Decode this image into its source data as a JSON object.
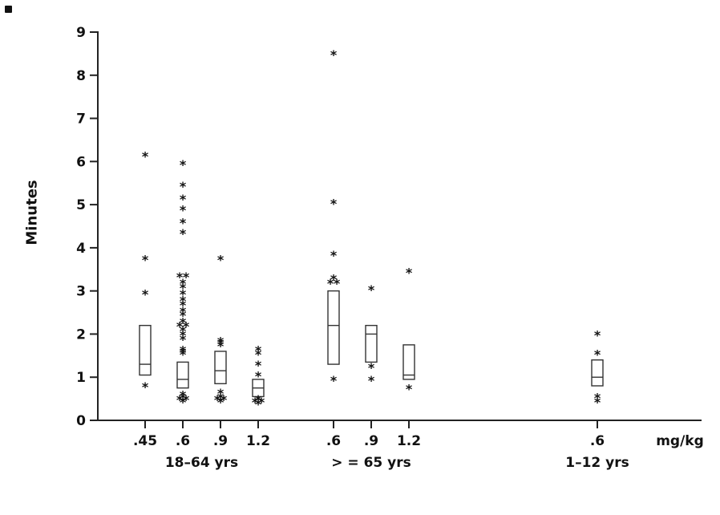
{
  "chart_data": {
    "type": "box",
    "title": "",
    "ylabel": "Minutes",
    "x_unit": "mg/kg",
    "ylim": [
      0,
      9
    ],
    "yticks": [
      0,
      1,
      2,
      3,
      4,
      5,
      6,
      7,
      8,
      9
    ],
    "grid": false,
    "x_slot_count": 13,
    "x_ticks": [
      {
        "slot": 0,
        "label": ".45"
      },
      {
        "slot": 1,
        "label": ".6"
      },
      {
        "slot": 2,
        "label": ".9"
      },
      {
        "slot": 3,
        "label": "1.2"
      },
      {
        "slot": 5,
        "label": ".6"
      },
      {
        "slot": 6,
        "label": ".9"
      },
      {
        "slot": 7,
        "label": "1.2"
      },
      {
        "slot": 12,
        "label": ".6"
      }
    ],
    "group_labels": [
      {
        "slot_center": 1.5,
        "label": "18–64 yrs"
      },
      {
        "slot_center": 6,
        "label": "> = 65 yrs"
      },
      {
        "slot_center": 12,
        "label": "1–12 yrs"
      }
    ],
    "boxes": [
      {
        "group": "18–64 yrs",
        "dose": ".45",
        "slot": 0,
        "q1": 1.05,
        "median": 1.3,
        "q3": 2.2,
        "outliers": [
          0.8,
          2.95,
          3.75,
          6.15
        ]
      },
      {
        "group": "18–64 yrs",
        "dose": ".6",
        "slot": 1,
        "q1": 0.75,
        "median": 0.95,
        "q3": 1.35,
        "outliers": [
          0.45,
          0.5,
          0.5,
          0.55,
          0.6,
          1.55,
          1.6,
          1.65,
          1.9,
          2.0,
          2.1,
          2.2,
          2.2,
          2.3,
          2.45,
          2.55,
          2.7,
          2.8,
          2.95,
          3.1,
          3.2,
          3.35,
          3.35,
          4.35,
          4.6,
          4.9,
          5.15,
          5.45,
          5.95
        ]
      },
      {
        "group": "18–64 yrs",
        "dose": ".9",
        "slot": 2,
        "q1": 0.85,
        "median": 1.15,
        "q3": 1.6,
        "outliers": [
          0.45,
          0.5,
          0.5,
          0.55,
          0.65,
          1.75,
          1.8,
          1.85,
          3.75
        ]
      },
      {
        "group": "18–64 yrs",
        "dose": "1.2",
        "slot": 3,
        "q1": 0.55,
        "median": 0.75,
        "q3": 0.95,
        "outliers": [
          0.4,
          0.45,
          0.45,
          0.5,
          1.05,
          1.3,
          1.55,
          1.65
        ]
      },
      {
        "group": "> = 65 yrs",
        "dose": ".6",
        "slot": 5,
        "q1": 1.3,
        "median": 2.2,
        "q3": 3.0,
        "outliers": [
          0.95,
          3.2,
          3.2,
          3.3,
          3.85,
          5.05,
          8.5
        ]
      },
      {
        "group": "> = 65 yrs",
        "dose": ".9",
        "slot": 6,
        "q1": 1.35,
        "median": 2.0,
        "q3": 2.2,
        "outliers": [
          0.95,
          1.25,
          3.05
        ]
      },
      {
        "group": "> = 65 yrs",
        "dose": "1.2",
        "slot": 7,
        "q1": 0.95,
        "median": 1.05,
        "q3": 1.75,
        "outliers": [
          0.75,
          3.45
        ]
      },
      {
        "group": "1–12 yrs",
        "dose": ".6",
        "slot": 12,
        "q1": 0.8,
        "median": 1.0,
        "q3": 1.4,
        "outliers": [
          0.45,
          0.55,
          1.55,
          2.0
        ]
      }
    ]
  }
}
